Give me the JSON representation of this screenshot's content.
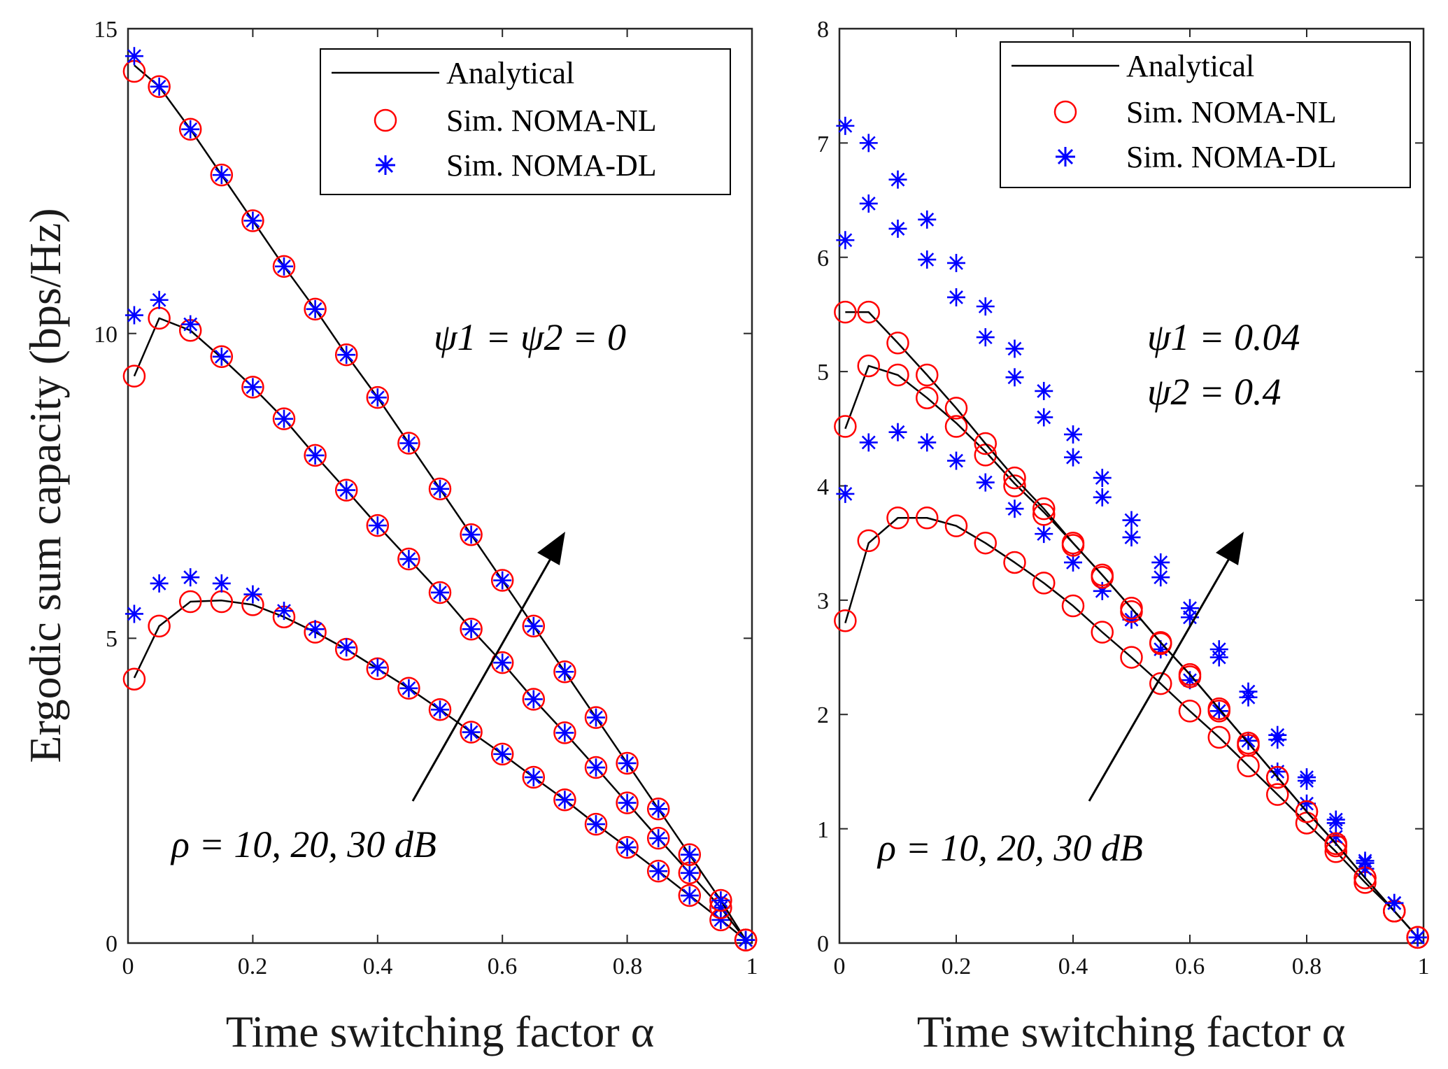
{
  "chart_data": [
    {
      "type": "line",
      "xlabel": "Time switching factor α",
      "ylabel": "Ergodic sum capacity (bps/Hz)",
      "xlim": [
        0,
        1
      ],
      "ylim": [
        0,
        15
      ],
      "xticks": [
        0,
        0.2,
        0.4,
        0.6,
        0.8,
        1
      ],
      "xtick_labels": [
        "0",
        "0.2",
        "0.4",
        "0.6",
        "0.8",
        "1"
      ],
      "yticks": [
        0,
        5,
        10,
        15
      ],
      "ytick_labels": [
        "0",
        "5",
        "10",
        "15"
      ],
      "grid": false,
      "legend_position": "top-right",
      "legend": [
        "Analytical",
        "Sim. NOMA-NL",
        "Sim. NOMA-DL"
      ],
      "annotations": [
        "ψ1 = ψ2 = 0",
        "ρ = 10, 20, 30 dB"
      ],
      "x": [
        0.01,
        0.05,
        0.1,
        0.15,
        0.2,
        0.25,
        0.3,
        0.35,
        0.4,
        0.45,
        0.5,
        0.55,
        0.6,
        0.65,
        0.7,
        0.75,
        0.8,
        0.85,
        0.9,
        0.95,
        0.99
      ],
      "series": [
        {
          "name": "Analytical",
          "values": [
            4.35,
            5.2,
            5.6,
            5.62,
            5.55,
            5.35,
            5.1,
            4.82,
            4.5,
            4.18,
            3.83,
            3.46,
            3.1,
            2.72,
            2.35,
            1.95,
            1.57,
            1.18,
            0.78,
            0.38,
            0.05
          ]
        },
        {
          "name": "Sim. NOMA-NL",
          "values": [
            4.33,
            5.2,
            5.6,
            5.6,
            5.55,
            5.35,
            5.1,
            4.82,
            4.5,
            4.18,
            3.83,
            3.46,
            3.1,
            2.72,
            2.35,
            1.95,
            1.57,
            1.18,
            0.78,
            0.38,
            0.05
          ]
        },
        {
          "name": "Sim. NOMA-DL",
          "values": [
            5.4,
            5.9,
            6.0,
            5.9,
            5.72,
            5.45,
            5.15,
            4.85,
            4.52,
            4.18,
            3.83,
            3.46,
            3.1,
            2.72,
            2.35,
            1.95,
            1.57,
            1.18,
            0.78,
            0.38,
            0.05
          ]
        },
        {
          "name": "Analytical",
          "values": [
            9.3,
            10.25,
            10.05,
            9.6,
            9.12,
            8.6,
            8.0,
            7.43,
            6.85,
            6.3,
            5.75,
            5.15,
            4.6,
            4.0,
            3.45,
            2.88,
            2.3,
            1.72,
            1.15,
            0.58,
            0.05
          ]
        },
        {
          "name": "Sim. NOMA-NL",
          "values": [
            9.3,
            10.25,
            10.05,
            9.62,
            9.12,
            8.6,
            8.0,
            7.43,
            6.85,
            6.3,
            5.75,
            5.15,
            4.6,
            4.0,
            3.45,
            2.88,
            2.3,
            1.72,
            1.15,
            0.58,
            0.05
          ]
        },
        {
          "name": "Sim. NOMA-DL",
          "values": [
            10.3,
            10.55,
            10.15,
            9.62,
            9.12,
            8.6,
            8.0,
            7.43,
            6.85,
            6.3,
            5.75,
            5.15,
            4.6,
            4.0,
            3.45,
            2.88,
            2.3,
            1.72,
            1.15,
            0.58,
            0.05
          ]
        },
        {
          "name": "Analytical",
          "values": [
            14.4,
            14.05,
            13.35,
            12.6,
            11.85,
            11.1,
            10.4,
            9.65,
            8.95,
            8.2,
            7.45,
            6.7,
            5.95,
            5.2,
            4.45,
            3.7,
            2.95,
            2.2,
            1.45,
            0.7,
            0.05
          ]
        },
        {
          "name": "Sim. NOMA-NL",
          "values": [
            14.3,
            14.05,
            13.35,
            12.6,
            11.85,
            11.1,
            10.4,
            9.65,
            8.95,
            8.2,
            7.45,
            6.7,
            5.95,
            5.2,
            4.45,
            3.7,
            2.95,
            2.2,
            1.45,
            0.7,
            0.05
          ]
        },
        {
          "name": "Sim. NOMA-DL",
          "values": [
            14.55,
            14.05,
            13.35,
            12.6,
            11.85,
            11.1,
            10.4,
            9.65,
            8.95,
            8.2,
            7.45,
            6.7,
            5.95,
            5.2,
            4.45,
            3.7,
            2.95,
            2.2,
            1.45,
            0.7,
            0.05
          ]
        }
      ]
    },
    {
      "type": "line",
      "xlabel": "Time switching factor α",
      "ylabel": "",
      "xlim": [
        0,
        1
      ],
      "ylim": [
        0,
        8
      ],
      "xticks": [
        0,
        0.2,
        0.4,
        0.6,
        0.8,
        1
      ],
      "xtick_labels": [
        "0",
        "0.2",
        "0.4",
        "0.6",
        "0.8",
        "1"
      ],
      "yticks": [
        0,
        1,
        2,
        3,
        4,
        5,
        6,
        7,
        8
      ],
      "ytick_labels": [
        "0",
        "1",
        "2",
        "3",
        "4",
        "5",
        "6",
        "7",
        "8"
      ],
      "grid": false,
      "legend_position": "top-right",
      "legend": [
        "Analytical",
        "Sim. NOMA-NL",
        "Sim. NOMA-DL"
      ],
      "annotations": [
        "ψ1 = 0.04",
        "ψ2 = 0.4",
        "ρ = 10, 20, 30 dB"
      ],
      "x": [
        0.01,
        0.05,
        0.1,
        0.15,
        0.2,
        0.25,
        0.3,
        0.35,
        0.4,
        0.45,
        0.5,
        0.55,
        0.6,
        0.65,
        0.7,
        0.75,
        0.8,
        0.85,
        0.9,
        0.95,
        0.99
      ],
      "series": [
        {
          "name": "Analytical",
          "values": [
            2.8,
            3.5,
            3.72,
            3.72,
            3.65,
            3.5,
            3.33,
            3.15,
            2.95,
            2.72,
            2.5,
            2.27,
            2.03,
            1.8,
            1.55,
            1.3,
            1.05,
            0.8,
            0.53,
            0.28,
            0.05
          ]
        },
        {
          "name": "Sim. NOMA-NL",
          "values": [
            2.82,
            3.52,
            3.72,
            3.72,
            3.65,
            3.5,
            3.33,
            3.15,
            2.95,
            2.72,
            2.5,
            2.27,
            2.03,
            1.8,
            1.55,
            1.3,
            1.05,
            0.8,
            0.53,
            0.28,
            0.05
          ]
        },
        {
          "name": "Sim. NOMA-DL",
          "values": [
            3.93,
            4.38,
            4.47,
            4.38,
            4.22,
            4.03,
            3.8,
            3.58,
            3.33,
            3.08,
            2.83,
            2.57,
            2.3,
            2.03,
            1.77,
            1.5,
            1.22,
            0.93,
            0.65,
            0.35,
            0.05
          ]
        },
        {
          "name": "Analytical",
          "values": [
            4.5,
            5.05,
            4.97,
            4.77,
            4.55,
            4.3,
            4.02,
            3.77,
            3.5,
            3.22,
            2.93,
            2.63,
            2.35,
            2.05,
            1.75,
            1.45,
            1.15,
            0.87,
            0.57,
            0.28,
            0.05
          ]
        },
        {
          "name": "Sim. NOMA-NL",
          "values": [
            4.52,
            5.05,
            4.97,
            4.77,
            4.52,
            4.27,
            4.0,
            3.75,
            3.48,
            3.2,
            2.9,
            2.62,
            2.33,
            2.03,
            1.73,
            1.45,
            1.15,
            0.85,
            0.57,
            0.28,
            0.05
          ]
        },
        {
          "name": "Sim. NOMA-DL",
          "values": [
            6.15,
            6.47,
            6.25,
            5.98,
            5.65,
            5.3,
            4.95,
            4.6,
            4.25,
            3.9,
            3.55,
            3.2,
            2.85,
            2.5,
            2.15,
            1.78,
            1.42,
            1.05,
            0.7,
            0.35,
            0.05
          ]
        },
        {
          "name": "Analytical",
          "values": [
            5.52,
            5.52,
            5.25,
            4.97,
            4.68,
            4.37,
            4.07,
            3.8,
            3.5,
            3.22,
            2.93,
            2.63,
            2.35,
            2.05,
            1.75,
            1.45,
            1.15,
            0.87,
            0.57,
            0.28,
            0.05
          ]
        },
        {
          "name": "Sim. NOMA-NL",
          "values": [
            5.52,
            5.52,
            5.25,
            4.97,
            4.68,
            4.37,
            4.07,
            3.8,
            3.5,
            3.22,
            2.93,
            2.63,
            2.35,
            2.05,
            1.75,
            1.45,
            1.15,
            0.87,
            0.57,
            0.28,
            0.05
          ]
        },
        {
          "name": "Sim. NOMA-DL",
          "values": [
            7.15,
            7.0,
            6.68,
            6.33,
            5.95,
            5.57,
            5.2,
            4.83,
            4.45,
            4.07,
            3.7,
            3.33,
            2.93,
            2.57,
            2.2,
            1.82,
            1.45,
            1.08,
            0.72,
            0.35,
            0.05
          ]
        }
      ]
    }
  ],
  "colors": {
    "analytical": "#000000",
    "nl_marker": "#ff0000",
    "dl_marker": "#0000ff",
    "axis": "#262626"
  }
}
